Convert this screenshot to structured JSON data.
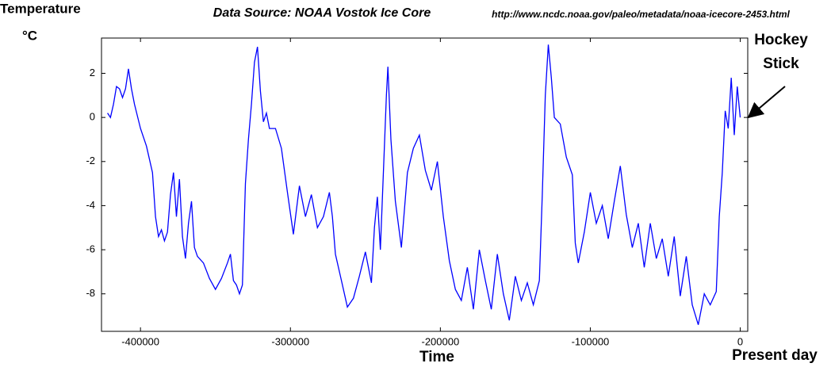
{
  "chart_data": {
    "type": "line",
    "title": "Data Source: NOAA Vostok Ice Core",
    "source_url": "http://www.ncdc.noaa.gov/paleo/metadata/noaa-icecore-2453.html",
    "ylabel": "Temperature",
    "ylabel_unit": "°C",
    "xlabel": "Time",
    "x_end_label": "Present day",
    "annotation": [
      "Hockey",
      "Stick"
    ],
    "x": [
      -422000,
      -420000,
      -418000,
      -416000,
      -414000,
      -412000,
      -410000,
      -408000,
      -406000,
      -404000,
      -400000,
      -396000,
      -392000,
      -390000,
      -388000,
      -386000,
      -384000,
      -382000,
      -380000,
      -378000,
      -376000,
      -374000,
      -372000,
      -370000,
      -368000,
      -366000,
      -364000,
      -362000,
      -358000,
      -354000,
      -350000,
      -346000,
      -342000,
      -340000,
      -338000,
      -336000,
      -334000,
      -332000,
      -330000,
      -328000,
      -326000,
      -324000,
      -322000,
      -320000,
      -318000,
      -316000,
      -314000,
      -310000,
      -306000,
      -302000,
      -298000,
      -294000,
      -290000,
      -286000,
      -282000,
      -278000,
      -274000,
      -272000,
      -270000,
      -266000,
      -262000,
      -258000,
      -254000,
      -250000,
      -246000,
      -244000,
      -242000,
      -240000,
      -238000,
      -236000,
      -235000,
      -233000,
      -230000,
      -226000,
      -222000,
      -218000,
      -214000,
      -210000,
      -206000,
      -202000,
      -198000,
      -194000,
      -190000,
      -186000,
      -182000,
      -178000,
      -174000,
      -170000,
      -166000,
      -162000,
      -158000,
      -154000,
      -150000,
      -146000,
      -142000,
      -138000,
      -134000,
      -132000,
      -130000,
      -128000,
      -126000,
      -124000,
      -120000,
      -116000,
      -112000,
      -110000,
      -108000,
      -104000,
      -100000,
      -96000,
      -92000,
      -88000,
      -84000,
      -80000,
      -76000,
      -72000,
      -68000,
      -64000,
      -60000,
      -56000,
      -52000,
      -48000,
      -44000,
      -40000,
      -36000,
      -32000,
      -28000,
      -24000,
      -20000,
      -16000,
      -14000,
      -12000,
      -10000,
      -8000,
      -6000,
      -4000,
      -2000,
      0
    ],
    "series": [
      {
        "color": "#0000ff",
        "values": [
          0.2,
          0.0,
          0.6,
          1.4,
          1.3,
          0.9,
          1.3,
          2.2,
          1.3,
          0.6,
          -0.5,
          -1.3,
          -2.5,
          -4.5,
          -5.4,
          -5.1,
          -5.6,
          -5.2,
          -3.5,
          -2.5,
          -4.5,
          -2.8,
          -5.4,
          -6.4,
          -4.8,
          -3.8,
          -5.9,
          -6.3,
          -6.6,
          -7.3,
          -7.8,
          -7.3,
          -6.6,
          -6.2,
          -7.4,
          -7.6,
          -8.0,
          -7.6,
          -3.0,
          -1.0,
          0.6,
          2.5,
          3.2,
          1.2,
          -0.2,
          0.2,
          -0.5,
          -0.5,
          -1.4,
          -3.4,
          -5.3,
          -3.1,
          -4.5,
          -3.5,
          -5.0,
          -4.5,
          -3.4,
          -4.5,
          -6.2,
          -7.4,
          -8.6,
          -8.2,
          -7.2,
          -6.1,
          -7.5,
          -5.0,
          -3.6,
          -6.0,
          -2.5,
          1.0,
          2.3,
          -1.0,
          -3.8,
          -5.9,
          -2.5,
          -1.4,
          -0.8,
          -2.4,
          -3.3,
          -2.0,
          -4.5,
          -6.5,
          -7.8,
          -8.3,
          -6.8,
          -8.7,
          -6.0,
          -7.4,
          -8.7,
          -6.2,
          -8.0,
          -9.2,
          -7.2,
          -8.3,
          -7.5,
          -8.5,
          -7.4,
          -3.5,
          1.0,
          3.3,
          1.8,
          0.0,
          -0.3,
          -1.8,
          -2.6,
          -5.7,
          -6.6,
          -5.2,
          -3.4,
          -4.8,
          -4.0,
          -5.5,
          -3.8,
          -2.2,
          -4.4,
          -5.9,
          -4.8,
          -6.8,
          -4.8,
          -6.4,
          -5.5,
          -7.2,
          -5.4,
          -8.1,
          -6.3,
          -8.5,
          -9.4,
          -8.0,
          -8.5,
          -7.9,
          -4.5,
          -2.5,
          0.3,
          -0.5,
          1.8,
          -0.8,
          1.4,
          0.0
        ]
      }
    ],
    "xlim": [
      -426000,
      5000
    ],
    "ylim": [
      -9.7,
      3.6
    ],
    "xticks": [
      -400000,
      -300000,
      -200000,
      -100000,
      0
    ],
    "yticks": [
      -8,
      -6,
      -4,
      -2,
      0,
      2
    ],
    "grid": false
  }
}
